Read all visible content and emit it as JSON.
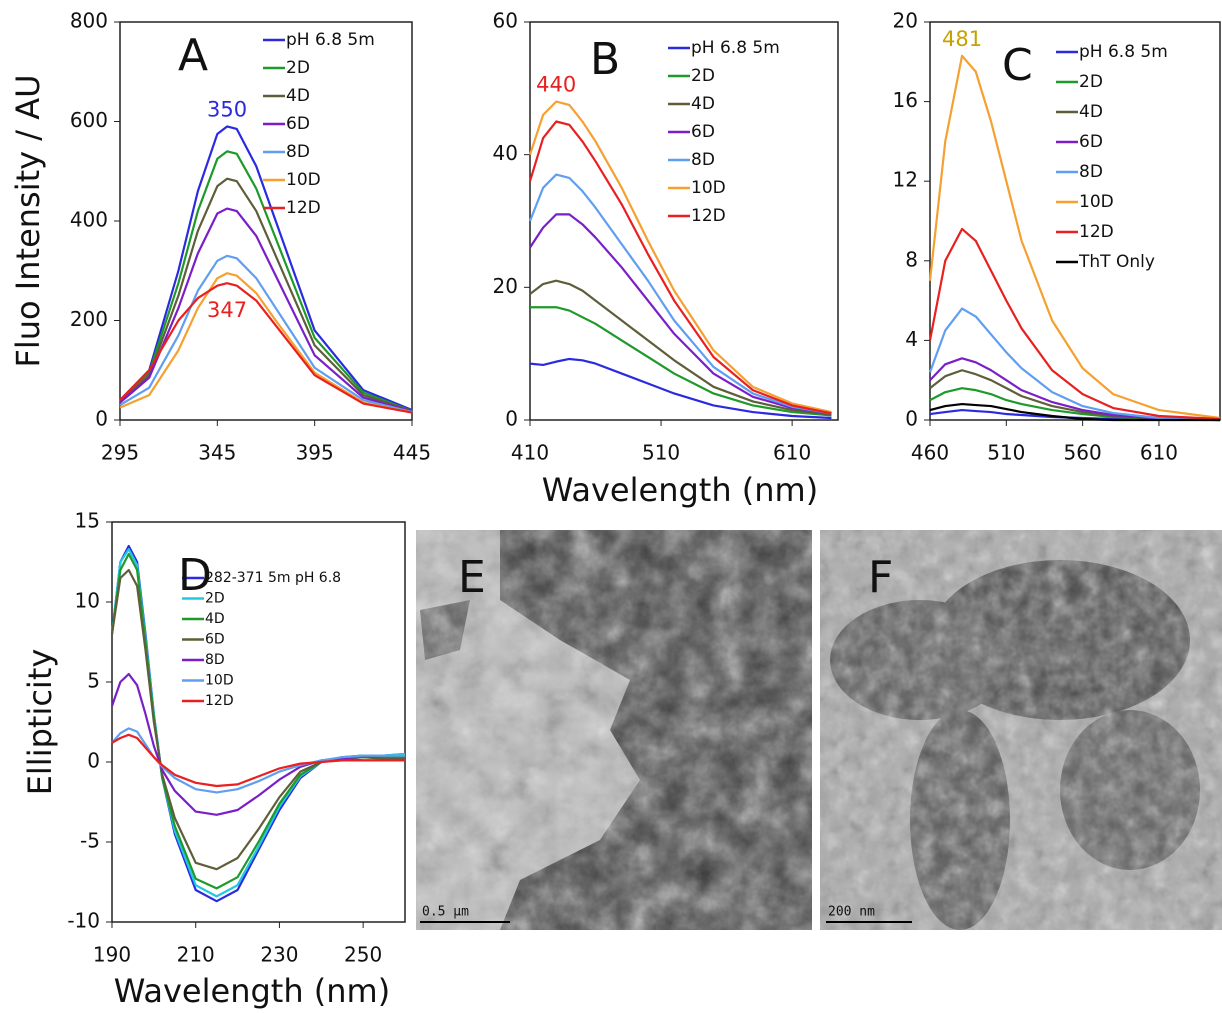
{
  "chart_data": [
    {
      "type": "line",
      "panel_label": "A",
      "ylabel": "Fluo Intensity / AU",
      "x": [
        295,
        310,
        325,
        335,
        345,
        350,
        355,
        365,
        375,
        395,
        420,
        445
      ],
      "xlim": [
        295,
        445
      ],
      "xticks": [
        295,
        345,
        395,
        445
      ],
      "ylim": [
        0,
        800
      ],
      "yticks": [
        0,
        200,
        400,
        600,
        800
      ],
      "legend": "upper right",
      "series": [
        {
          "name": "pH 6.8 5m",
          "color": "#2a2ae0",
          "values": [
            40,
            100,
            300,
            460,
            575,
            590,
            585,
            510,
            400,
            180,
            60,
            20
          ]
        },
        {
          "name": "2D",
          "color": "#1e9a2a",
          "values": [
            38,
            95,
            275,
            420,
            525,
            540,
            535,
            465,
            365,
            165,
            55,
            18
          ]
        },
        {
          "name": "4D",
          "color": "#5e5e3a",
          "values": [
            37,
            90,
            250,
            380,
            470,
            485,
            480,
            420,
            330,
            150,
            50,
            18
          ]
        },
        {
          "name": "6D",
          "color": "#7a1fc8",
          "values": [
            35,
            85,
            225,
            335,
            415,
            425,
            420,
            370,
            290,
            130,
            45,
            17
          ]
        },
        {
          "name": "8D",
          "color": "#5f9ef0",
          "values": [
            30,
            65,
            170,
            260,
            320,
            330,
            325,
            285,
            225,
            105,
            40,
            16
          ]
        },
        {
          "name": "10D",
          "color": "#f5a030",
          "values": [
            25,
            50,
            140,
            225,
            285,
            295,
            290,
            255,
            200,
            95,
            35,
            15
          ]
        },
        {
          "name": "12D",
          "color": "#e82020",
          "values": [
            40,
            100,
            200,
            245,
            270,
            275,
            270,
            240,
            190,
            90,
            33,
            15
          ]
        }
      ],
      "annotations": [
        {
          "text": "350",
          "series": 0,
          "position": "above",
          "color": "#2a2ae0"
        },
        {
          "text": "347",
          "series": 6,
          "position": "below",
          "color": "#e82020"
        }
      ]
    },
    {
      "type": "line",
      "panel_label": "B",
      "xlabel": "Wavelength (nm)",
      "x": [
        410,
        420,
        430,
        440,
        450,
        460,
        480,
        500,
        520,
        550,
        580,
        610,
        640
      ],
      "xlim": [
        410,
        645
      ],
      "xticks": [
        410,
        510,
        610
      ],
      "ylim": [
        0,
        60
      ],
      "yticks": [
        0,
        20,
        40,
        60
      ],
      "legend": "upper right",
      "series": [
        {
          "name": "pH 6.8 5m",
          "color": "#2a2ae0",
          "values": [
            8.5,
            8.3,
            8.8,
            9.2,
            9,
            8.5,
            7,
            5.5,
            4,
            2.2,
            1.2,
            0.6,
            0.3
          ]
        },
        {
          "name": "2D",
          "color": "#1e9a2a",
          "values": [
            17,
            17,
            17,
            16.5,
            15.5,
            14.5,
            12,
            9.5,
            7,
            4,
            2.2,
            1.2,
            0.7
          ]
        },
        {
          "name": "4D",
          "color": "#5e5e3a",
          "values": [
            19,
            20.5,
            21,
            20.5,
            19.5,
            18,
            15,
            12,
            9,
            5,
            2.8,
            1.5,
            0.8
          ]
        },
        {
          "name": "6D",
          "color": "#7a1fc8",
          "values": [
            26,
            29,
            31,
            31,
            29.5,
            27.5,
            23,
            18,
            13,
            7,
            3.5,
            1.8,
            1
          ]
        },
        {
          "name": "8D",
          "color": "#5f9ef0",
          "values": [
            30,
            35,
            37,
            36.5,
            34.5,
            32,
            26.5,
            21,
            15,
            8,
            4,
            2,
            1
          ]
        },
        {
          "name": "10D",
          "color": "#f5a030",
          "values": [
            40,
            46,
            48,
            47.5,
            45,
            42,
            35,
            27,
            19.5,
            10.5,
            5,
            2.5,
            1.2
          ]
        },
        {
          "name": "12D",
          "color": "#e82020",
          "values": [
            36,
            42.5,
            45,
            44.5,
            42,
            39,
            32.5,
            25,
            18,
            9.5,
            4.5,
            2.2,
            1
          ]
        }
      ],
      "annotations": [
        {
          "text": "440",
          "series": 5,
          "position": "above",
          "color": "#e82020"
        }
      ]
    },
    {
      "type": "line",
      "panel_label": "C",
      "x": [
        460,
        470,
        481,
        490,
        500,
        510,
        520,
        540,
        560,
        580,
        610,
        650
      ],
      "xlim": [
        460,
        650
      ],
      "xticks": [
        460,
        510,
        560,
        610
      ],
      "ylim": [
        0,
        20
      ],
      "yticks": [
        0,
        4,
        8,
        12,
        16,
        20
      ],
      "legend": "upper right",
      "series": [
        {
          "name": "pH 6.8 5m",
          "color": "#2a2ae0",
          "values": [
            0.3,
            0.4,
            0.5,
            0.45,
            0.4,
            0.3,
            0.25,
            0.15,
            0.1,
            0.05,
            0.02,
            0
          ]
        },
        {
          "name": "2D",
          "color": "#1e9a2a",
          "values": [
            1,
            1.4,
            1.6,
            1.5,
            1.3,
            1,
            0.8,
            0.5,
            0.3,
            0.15,
            0.05,
            0
          ]
        },
        {
          "name": "4D",
          "color": "#5e5e3a",
          "values": [
            1.6,
            2.2,
            2.5,
            2.3,
            2,
            1.6,
            1.2,
            0.7,
            0.4,
            0.2,
            0.05,
            0
          ]
        },
        {
          "name": "6D",
          "color": "#7a1fc8",
          "values": [
            2,
            2.8,
            3.1,
            2.9,
            2.5,
            2,
            1.5,
            0.9,
            0.5,
            0.25,
            0.08,
            0
          ]
        },
        {
          "name": "8D",
          "color": "#5f9ef0",
          "values": [
            2.4,
            4.5,
            5.6,
            5.2,
            4.3,
            3.4,
            2.6,
            1.4,
            0.7,
            0.35,
            0.1,
            0
          ]
        },
        {
          "name": "10D",
          "color": "#f5a030",
          "values": [
            7,
            14,
            18.3,
            17.5,
            15,
            12,
            9,
            5,
            2.6,
            1.3,
            0.5,
            0.1
          ]
        },
        {
          "name": "12D",
          "color": "#e82020",
          "values": [
            4,
            8,
            9.6,
            9,
            7.5,
            6,
            4.6,
            2.5,
            1.3,
            0.6,
            0.2,
            0.05
          ]
        },
        {
          "name": "ThT Only",
          "color": "#000000",
          "values": [
            0.5,
            0.7,
            0.8,
            0.75,
            0.7,
            0.55,
            0.4,
            0.2,
            0.05,
            0,
            0,
            0
          ]
        }
      ],
      "annotations": [
        {
          "text": "481",
          "series": 5,
          "position": "above",
          "color": "#c8a000"
        }
      ]
    },
    {
      "type": "line",
      "panel_label": "D",
      "ylabel": "Ellipticity",
      "xlabel": "Wavelength (nm)",
      "x": [
        190,
        192,
        194,
        196,
        198,
        200,
        202,
        205,
        210,
        215,
        220,
        225,
        230,
        235,
        240,
        245,
        250,
        255,
        260
      ],
      "xlim": [
        190,
        260
      ],
      "xticks": [
        190,
        210,
        230,
        250
      ],
      "ylim": [
        -10,
        15
      ],
      "yticks": [
        -10,
        -5,
        0,
        5,
        10,
        15
      ],
      "legend": "upper right",
      "series": [
        {
          "name": "282-371 5m pH 6.8",
          "color": "#2a2ae0",
          "values": [
            8,
            12.5,
            13.5,
            12.5,
            8,
            3,
            -1,
            -4.5,
            -8,
            -8.7,
            -8,
            -5.5,
            -3,
            -1,
            0,
            0.3,
            0.4,
            0.4,
            0.5
          ]
        },
        {
          "name": "2D",
          "color": "#20c8e0",
          "values": [
            8,
            12.5,
            13.3,
            12.3,
            7.8,
            3,
            -1,
            -4.3,
            -7.7,
            -8.4,
            -7.7,
            -5.3,
            -2.8,
            -0.9,
            0,
            0.3,
            0.4,
            0.4,
            0.5
          ]
        },
        {
          "name": "4D",
          "color": "#1e9a2a",
          "values": [
            8,
            12,
            13,
            12,
            7.5,
            2.8,
            -1,
            -4,
            -7.3,
            -7.9,
            -7.2,
            -5,
            -2.6,
            -0.8,
            0,
            0.3,
            0.3,
            0.3,
            0.3
          ]
        },
        {
          "name": "6D",
          "color": "#5e5e3a",
          "values": [
            8,
            11.5,
            12,
            11,
            7,
            2.5,
            -0.8,
            -3.5,
            -6.3,
            -6.7,
            -6,
            -4.2,
            -2.2,
            -0.6,
            0,
            0.2,
            0.3,
            0.2,
            0.2
          ]
        },
        {
          "name": "8D",
          "color": "#7a1fc8",
          "values": [
            3.5,
            5,
            5.5,
            4.8,
            3,
            1,
            -0.5,
            -1.8,
            -3.1,
            -3.3,
            -3,
            -2.1,
            -1.1,
            -0.3,
            0.1,
            0.2,
            0.1,
            0.1,
            0.1
          ]
        },
        {
          "name": "10D",
          "color": "#5f9ef0",
          "values": [
            1.2,
            1.8,
            2.1,
            1.9,
            1.1,
            0.3,
            -0.3,
            -1,
            -1.7,
            -1.9,
            -1.7,
            -1.2,
            -0.6,
            -0.2,
            0.1,
            0.3,
            0.4,
            0.4,
            0.4
          ]
        },
        {
          "name": "12D",
          "color": "#e82020",
          "values": [
            1.2,
            1.5,
            1.7,
            1.5,
            0.9,
            0.3,
            -0.2,
            -0.8,
            -1.3,
            -1.5,
            -1.4,
            -0.9,
            -0.4,
            -0.1,
            0,
            0.1,
            0.1,
            0.1,
            0.1
          ]
        }
      ]
    }
  ],
  "images": [
    {
      "panel_label": "E",
      "scale_bar": "0.5 µm"
    },
    {
      "panel_label": "F",
      "scale_bar": "200 nm"
    }
  ]
}
